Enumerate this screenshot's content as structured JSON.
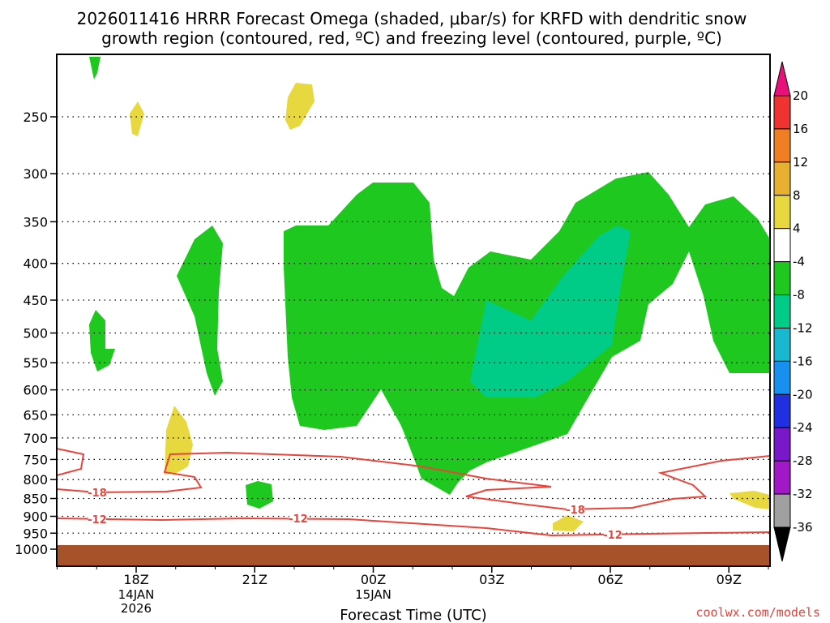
{
  "title_line1": "2026011416 HRRR Forecast Omega (shaded, μbar/s) for KRFD with dendritic snow",
  "title_line2": "growth region (contoured, red, ºC) and freezing level (contoured, purple, ºC)",
  "credit": "coolwx.com/models",
  "chart_data": {
    "type": "contour-time-height",
    "title": "2026011416 HRRR Forecast Omega (shaded, μbar/s) for KRFD with dendritic snow growth region (contoured, red, ºC) and freezing level (contoured, purple, ºC)",
    "xlabel": "Forecast Time (UTC)",
    "ylabel": "",
    "x_ticks": [
      {
        "label": "18Z",
        "date": "14JAN",
        "year": "2026",
        "hour": 18
      },
      {
        "label": "21Z",
        "hour": 21
      },
      {
        "label": "00Z",
        "date": "15JAN",
        "hour": 24
      },
      {
        "label": "03Z",
        "hour": 27
      },
      {
        "label": "06Z",
        "hour": 30
      },
      {
        "label": "09Z",
        "hour": 33
      }
    ],
    "x_range_hours": [
      16,
      34
    ],
    "y_axis": "pressure (mb)",
    "y_ticks": [
      250,
      300,
      350,
      400,
      450,
      500,
      550,
      600,
      650,
      700,
      750,
      800,
      850,
      900,
      950,
      1000
    ],
    "y_range": [
      1000,
      200
    ],
    "grid": true,
    "colorbar": {
      "levels": [
        20,
        16,
        12,
        8,
        4,
        -4,
        -8,
        -12,
        -16,
        -20,
        -24,
        -28,
        -32,
        -36
      ],
      "colors": [
        "#e8117a",
        "#ee3330",
        "#f07f24",
        "#e8b030",
        "#e8d840",
        "#ffffff",
        "#1ec81e",
        "#00cc88",
        "#18b8d0",
        "#1890f0",
        "#2030e0",
        "#7818c8",
        "#a018c8",
        "#a0a0a0",
        "#000000"
      ],
      "above_color": "#e8117a",
      "below_color": "#000000"
    },
    "omega_regions": [
      {
        "color": "#1ec81e",
        "range": "-8 to -4",
        "note": "large upward-motion area ~300-850 mb, 20Z-10Z"
      },
      {
        "color": "#00cc88",
        "range": "-12 to -8",
        "note": "core ~360-620 mb, 03Z-07Z"
      },
      {
        "color": "#e8d840",
        "range": "4 to 8",
        "note": "small sinking areas"
      }
    ],
    "contours": [
      {
        "name": "dendritic growth region",
        "color": "#e8453c",
        "levels": [
          -18,
          -12
        ],
        "labels": [
          "-18",
          "-12",
          "-12",
          "-18",
          "-12"
        ]
      }
    ],
    "ground_color": "#a8522a"
  }
}
